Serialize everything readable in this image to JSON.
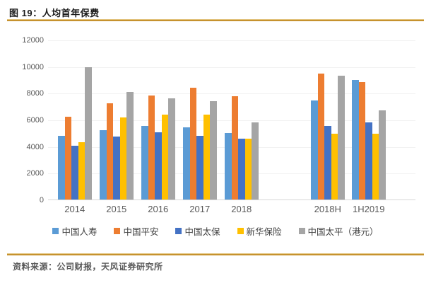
{
  "header": {
    "title": "图 19：人均首年保费"
  },
  "footer": {
    "source": "资料来源：公司财报，天风证券研究所"
  },
  "chart_data": {
    "type": "bar",
    "title": "人均首年保费",
    "categories": [
      "2014",
      "2015",
      "2016",
      "2017",
      "2018",
      "2018H",
      "1H2019"
    ],
    "series": [
      {
        "name": "中国人寿",
        "color": "#5B9BD5",
        "values": [
          4800,
          5200,
          5500,
          5400,
          5000,
          7450,
          8950
        ]
      },
      {
        "name": "中国平安",
        "color": "#ED7D31",
        "values": [
          6200,
          7250,
          7800,
          8400,
          7750,
          9450,
          8800
        ]
      },
      {
        "name": "中国太保",
        "color": "#4472C4",
        "values": [
          4050,
          4750,
          5050,
          4800,
          4550,
          5550,
          5800
        ]
      },
      {
        "name": "新华保险",
        "color": "#FFC000",
        "values": [
          4300,
          6150,
          6400,
          6350,
          4550,
          4950,
          4950
        ]
      },
      {
        "name": "中国太平（港元）",
        "color": "#A5A5A5",
        "values": [
          9950,
          8050,
          7600,
          7400,
          5800,
          9300,
          6700
        ]
      }
    ],
    "xlabel": "",
    "ylabel": "",
    "ylim": [
      0,
      12000
    ],
    "yticks": [
      0,
      2000,
      4000,
      6000,
      8000,
      10000,
      12000
    ],
    "grid": false,
    "legend_position": "bottom",
    "accent_rule_color": "#C6922E",
    "axis_text_color": "#595959"
  }
}
